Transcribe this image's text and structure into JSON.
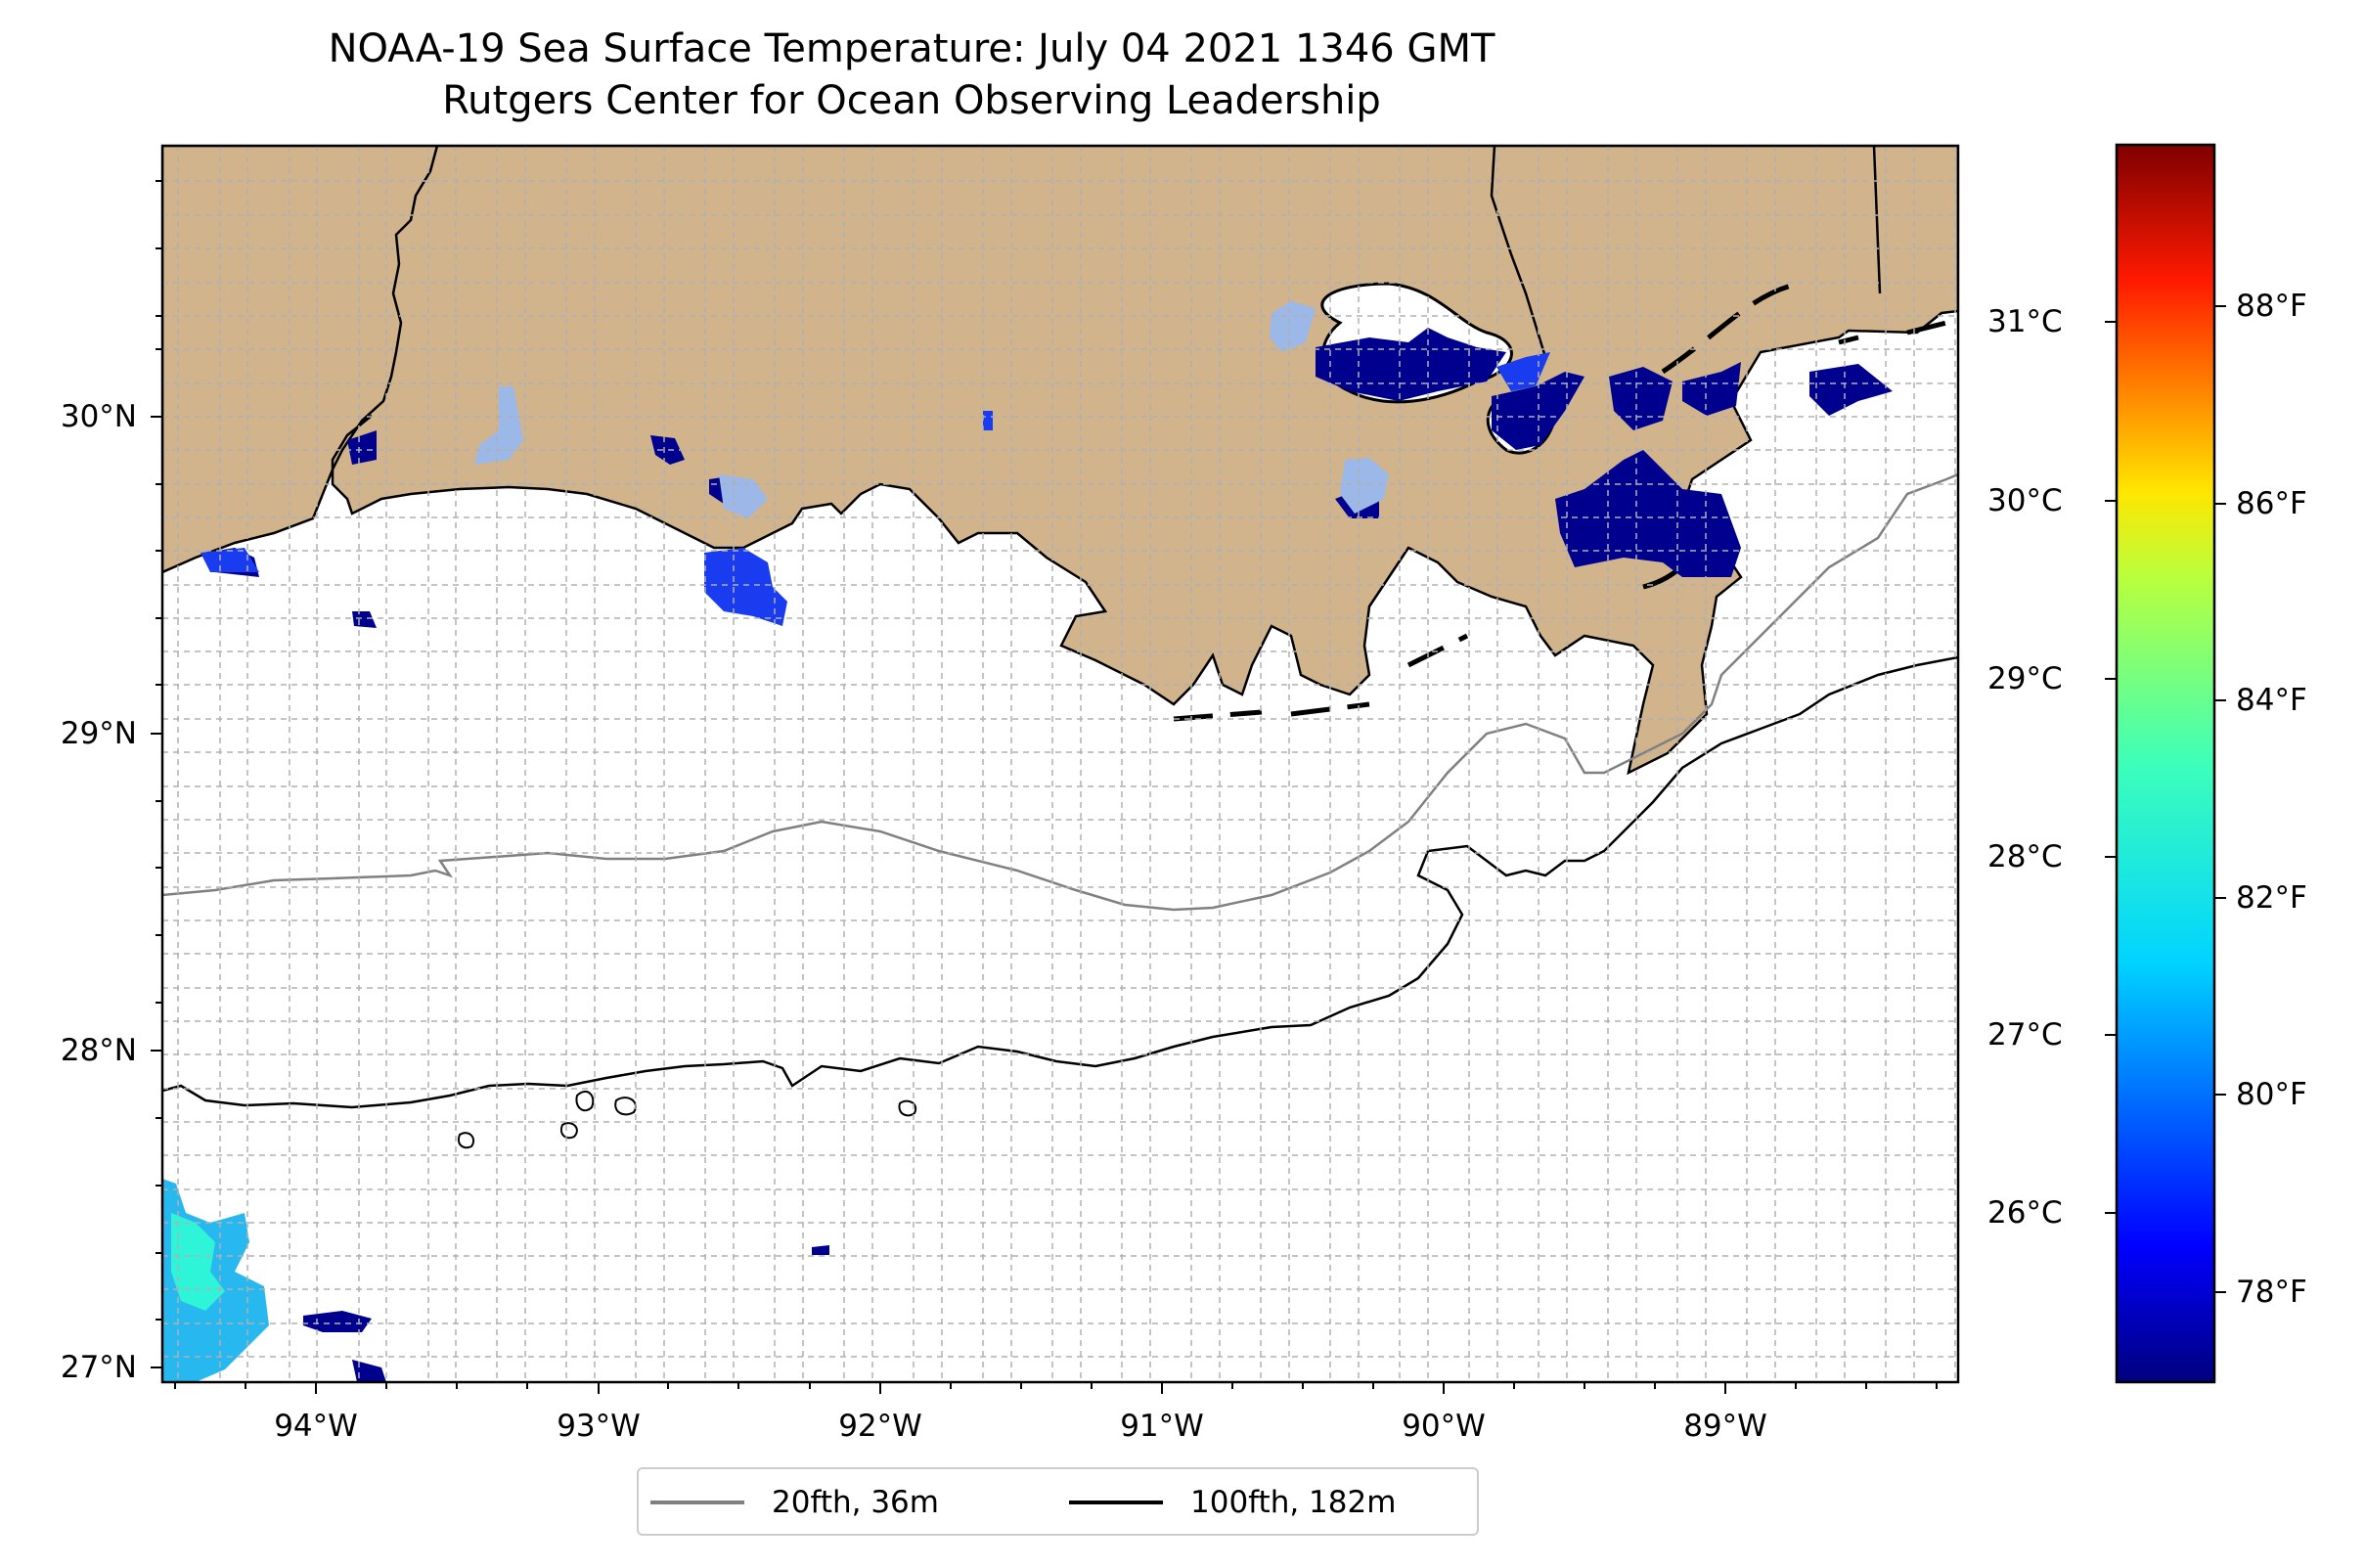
{
  "title": {
    "line1": "NOAA-19 Sea Surface Temperature: July 04 2021 1346 GMT",
    "line2": "Rutgers Center for Ocean Observing Leadership"
  },
  "axes": {
    "lat_ticks": [
      "30°N",
      "29°N",
      "28°N",
      "27°N"
    ],
    "lon_ticks": [
      "94°W",
      "93°W",
      "92°W",
      "91°W",
      "90°W",
      "89°W"
    ],
    "extent": {
      "lon_min": -94.55,
      "lon_max": -88.2,
      "lat_min": 26.95,
      "lat_max": 30.85
    },
    "grid": "on"
  },
  "colorbar": {
    "celsius_labels": [
      "31°C",
      "30°C",
      "29°C",
      "28°C",
      "27°C",
      "26°C"
    ],
    "fahrenheit_labels": [
      "88°F",
      "86°F",
      "84°F",
      "82°F",
      "80°F",
      "78°F"
    ],
    "colormap": "jet"
  },
  "legend": {
    "items": [
      {
        "label": "20fth, 36m",
        "color": "#808080"
      },
      {
        "label": "100fth, 182m",
        "color": "#000000"
      }
    ]
  },
  "colors": {
    "land": "#d2b48c",
    "sst_cold": "#00008f",
    "sst_blue": "#1a3cf0",
    "sst_cyan": "#2ff5d8",
    "no_data_lake": "#9bb8e8"
  }
}
